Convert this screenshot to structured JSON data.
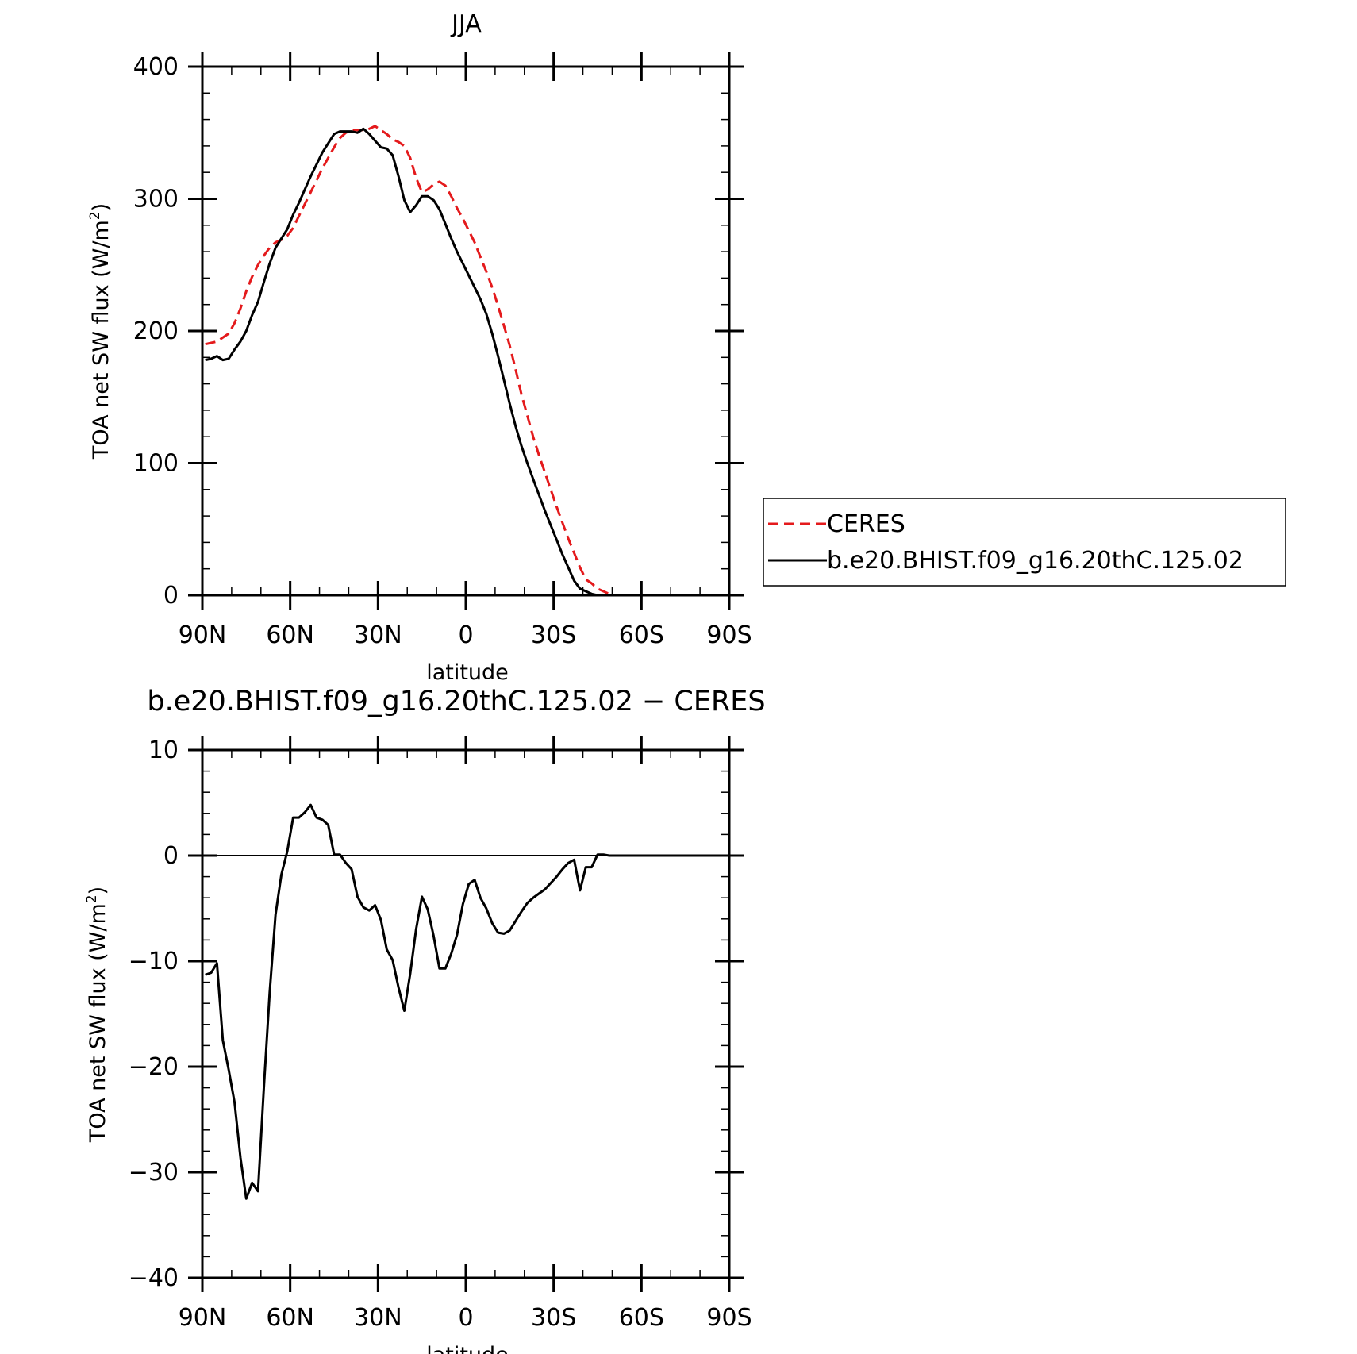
{
  "chart_data": [
    {
      "type": "line",
      "title": "JJA",
      "xlabel": "latitude",
      "ylabel": "TOA net SW flux (W/m",
      "ylabel_sup": "2",
      "ylabel_close": ")",
      "xlim": [
        90,
        -90
      ],
      "ylim": [
        0,
        400
      ],
      "x_ticks": [
        90,
        60,
        30,
        0,
        -30,
        -60,
        -90
      ],
      "x_tick_labels": [
        "90N",
        "60N",
        "30N",
        "0",
        "30S",
        "60S",
        "90S"
      ],
      "y_ticks": [
        0,
        100,
        200,
        300,
        400
      ],
      "y_tick_labels": [
        "0",
        "100",
        "200",
        "300",
        "400"
      ],
      "grid": false,
      "legend": {
        "position": "right",
        "entries": [
          "CERES",
          "b.e20.BHIST.f09_g16.20thC.125.02"
        ]
      },
      "series": [
        {
          "name": "CERES",
          "color": "#e41a1c",
          "dash": "dashed",
          "x": [
            89,
            87,
            85,
            83,
            81,
            79,
            77,
            75,
            73,
            71,
            69,
            67,
            65,
            63,
            61,
            59,
            57,
            55,
            53,
            51,
            49,
            47,
            45,
            43,
            41,
            39,
            37,
            35,
            33,
            31,
            29,
            27,
            25,
            23,
            21,
            19,
            17,
            15,
            13,
            11,
            9,
            7,
            5,
            3,
            1,
            -1,
            -3,
            -5,
            -7,
            -9,
            -11,
            -13,
            -15,
            -17,
            -19,
            -21,
            -23,
            -25,
            -27,
            -29,
            -31,
            -33,
            -35,
            -37,
            -39,
            -41,
            -43,
            -45,
            -47,
            -49,
            -51,
            -53,
            -55,
            -57,
            -59,
            -61,
            -63,
            -65,
            -67,
            -69,
            -71,
            -73,
            -75,
            -77,
            -79,
            -81,
            -83,
            -85,
            -87,
            -89
          ],
          "values": [
            190,
            191,
            192,
            195,
            198,
            206,
            217,
            230,
            241,
            250,
            257,
            263,
            267,
            269,
            272,
            278,
            287,
            296,
            305,
            314,
            323,
            331,
            339,
            346,
            350,
            352,
            352,
            352,
            353,
            355,
            352,
            349,
            345,
            343,
            340,
            331,
            316,
            305,
            307,
            311,
            313,
            310,
            302,
            293,
            285,
            276,
            267,
            256,
            245,
            233,
            219,
            204,
            189,
            171,
            152,
            136,
            120,
            106,
            93,
            80,
            67,
            55,
            43,
            32,
            21,
            12,
            9,
            5,
            3,
            1,
            0,
            0,
            0,
            0,
            0,
            0,
            0,
            0,
            0,
            0,
            0,
            0,
            0,
            0,
            0,
            0,
            0,
            0,
            0,
            0
          ]
        },
        {
          "name": "b.e20.BHIST.f09_g16.20thC.125.02",
          "color": "#000000",
          "dash": "solid",
          "x": [
            89,
            87,
            85,
            83,
            81,
            79,
            77,
            75,
            73,
            71,
            69,
            67,
            65,
            63,
            61,
            59,
            57,
            55,
            53,
            51,
            49,
            47,
            45,
            43,
            41,
            39,
            37,
            35,
            33,
            31,
            29,
            27,
            25,
            23,
            21,
            19,
            17,
            15,
            13,
            11,
            9,
            7,
            5,
            3,
            1,
            -1,
            -3,
            -5,
            -7,
            -9,
            -11,
            -13,
            -15,
            -17,
            -19,
            -21,
            -23,
            -25,
            -27,
            -29,
            -31,
            -33,
            -35,
            -37,
            -39,
            -41,
            -43,
            -45,
            -47,
            -49,
            -51,
            -53,
            -55,
            -57,
            -59,
            -61,
            -63,
            -65,
            -67,
            -69,
            -71,
            -73,
            -75,
            -77,
            -79,
            -81,
            -83,
            -85,
            -87,
            -89
          ],
          "values": [
            178,
            179,
            181,
            178,
            179,
            186,
            192,
            200,
            212,
            222,
            237,
            251,
            263,
            270,
            277,
            288,
            297,
            307,
            317,
            326,
            335,
            342,
            349,
            351,
            351,
            351,
            350,
            353,
            349,
            344,
            339,
            338,
            333,
            317,
            299,
            290,
            295,
            302,
            302,
            299,
            292,
            281,
            270,
            260,
            251,
            242,
            233,
            224,
            213,
            198,
            181,
            163,
            145,
            128,
            113,
            100,
            88,
            76,
            64,
            53,
            42,
            31,
            21,
            11,
            5,
            3,
            1,
            0,
            0,
            0,
            0,
            0,
            0,
            0,
            0,
            0,
            0,
            0,
            0,
            0,
            0,
            0,
            0,
            0,
            0,
            0,
            0,
            0,
            0,
            0
          ]
        }
      ]
    },
    {
      "type": "line",
      "title": "b.e20.BHIST.f09_g16.20thC.125.02 − CERES",
      "xlabel": "latitude",
      "ylabel": "TOA net SW flux (W/m",
      "ylabel_sup": "2",
      "ylabel_close": ")",
      "xlim": [
        90,
        -90
      ],
      "ylim": [
        -40,
        10
      ],
      "x_ticks": [
        90,
        60,
        30,
        0,
        -30,
        -60,
        -90
      ],
      "x_tick_labels": [
        "90N",
        "60N",
        "30N",
        "0",
        "30S",
        "60S",
        "90S"
      ],
      "y_ticks": [
        -40,
        -30,
        -20,
        -10,
        0,
        10
      ],
      "y_tick_labels": [
        "−40",
        "−30",
        "−20",
        "−10",
        "0",
        "10"
      ],
      "grid": false,
      "zero_line": true,
      "series": [
        {
          "color": "#000000",
          "dash": "solid",
          "x": [
            89,
            87,
            85,
            83,
            81,
            79,
            77,
            75,
            73,
            71,
            69,
            67,
            65,
            63,
            61,
            59,
            57,
            55,
            53,
            51,
            49,
            47,
            45,
            43,
            41,
            39,
            37,
            35,
            33,
            31,
            29,
            27,
            25,
            23,
            21,
            19,
            17,
            15,
            13,
            11,
            9,
            7,
            5,
            3,
            1,
            -1,
            -3,
            -5,
            -7,
            -9,
            -11,
            -13,
            -15,
            -17,
            -19,
            -21,
            -23,
            -25,
            -27,
            -29,
            -31,
            -33,
            -35,
            -37,
            -39,
            -41,
            -43,
            -45,
            -47,
            -49,
            -51,
            -53,
            -55,
            -57,
            -59,
            -61,
            -63,
            -65,
            -67,
            -69,
            -71,
            -73,
            -75,
            -77,
            -79,
            -81,
            -83,
            -85,
            -87,
            -89
          ],
          "values": [
            -11.3,
            -11.1,
            -10.2,
            -17.5,
            -20.3,
            -23.4,
            -28.6,
            -32.5,
            -31.0,
            -31.8,
            -22.0,
            -13.0,
            -5.6,
            -1.8,
            0.4,
            3.6,
            3.6,
            4.1,
            4.8,
            3.6,
            3.4,
            2.9,
            0.1,
            0.1,
            -0.7,
            -1.3,
            -3.9,
            -4.9,
            -5.2,
            -4.7,
            -6.1,
            -8.9,
            -9.9,
            -12.5,
            -14.7,
            -11.2,
            -7.0,
            -3.9,
            -5.1,
            -7.6,
            -10.7,
            -10.7,
            -9.3,
            -7.5,
            -4.6,
            -2.7,
            -2.3,
            -4.0,
            -5.0,
            -6.4,
            -7.3,
            -7.4,
            -7.1,
            -6.2,
            -5.3,
            -4.5,
            -4.0,
            -3.6,
            -3.2,
            -2.6,
            -2.0,
            -1.3,
            -0.7,
            -0.4,
            -3.3,
            -1.1,
            -1.1,
            0.1,
            0.1,
            0.0,
            0.0,
            0.0,
            0.0,
            0.0,
            0.0,
            0.0,
            0.0,
            0.0,
            0.0,
            0.0,
            0.0,
            0.0,
            0.0,
            0.0,
            0.0,
            0.0,
            0.0,
            0.0,
            0.0,
            0.0
          ]
        }
      ]
    }
  ]
}
